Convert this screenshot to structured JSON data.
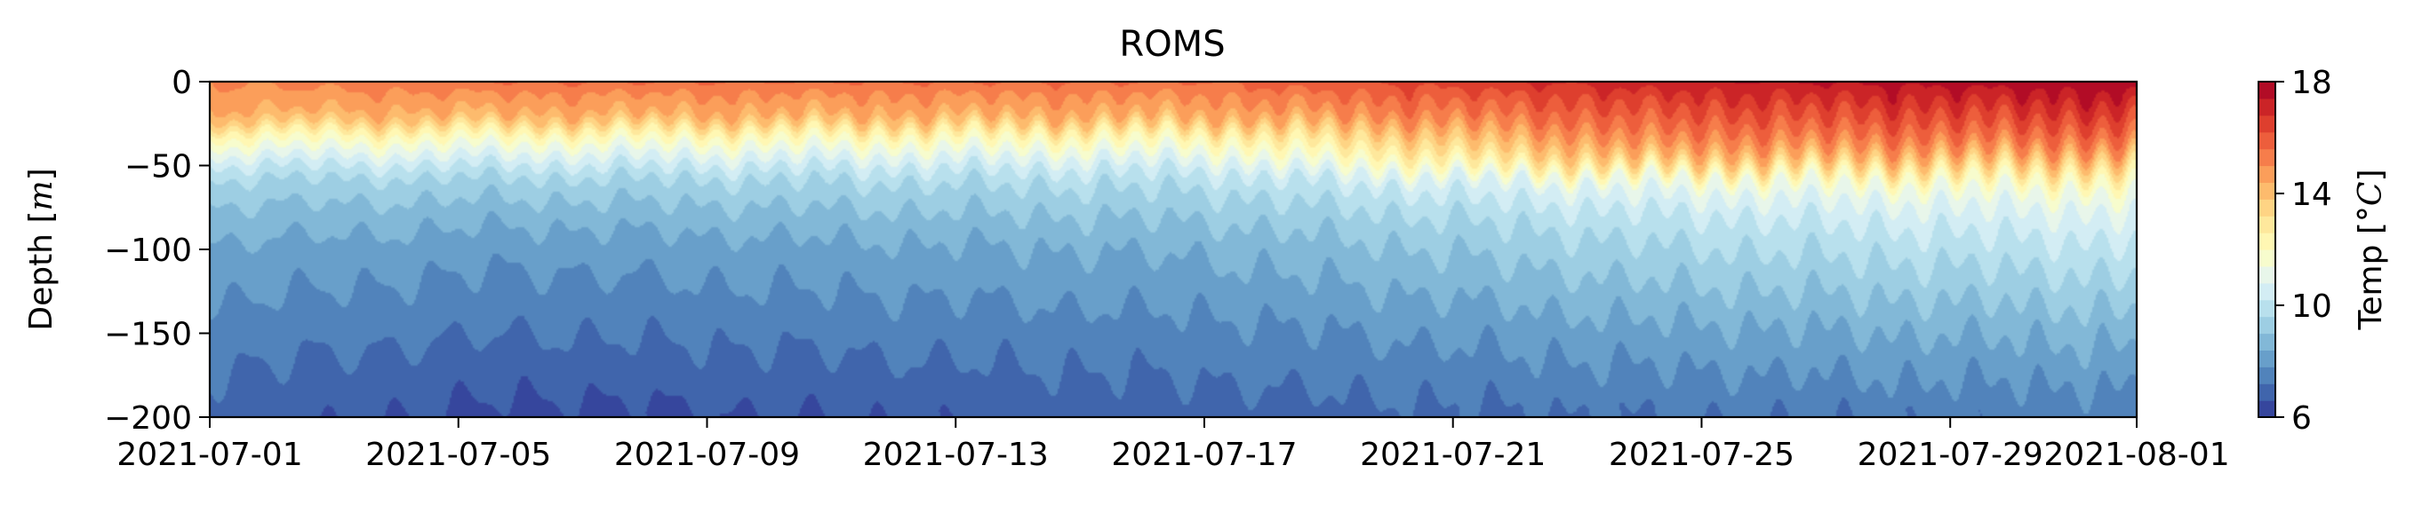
{
  "chart_data": {
    "type": "heatmap",
    "title": "ROMS",
    "ylabel": "Depth [$m$]",
    "ylabel_main": "Depth [",
    "ylabel_unit": "m",
    "ylabel_end": "]",
    "x_start": "2021-07-01",
    "x_end": "2021-08-01",
    "xticks": [
      "2021-07-01",
      "2021-07-05",
      "2021-07-09",
      "2021-07-13",
      "2021-07-17",
      "2021-07-21",
      "2021-07-25",
      "2021-07-29",
      "2021-08-01"
    ],
    "ylim": [
      -200,
      0
    ],
    "yticks": [
      0,
      -50,
      -100,
      -150,
      -200
    ],
    "ytick_labels": [
      "0",
      "−50",
      "−100",
      "−150",
      "−200"
    ],
    "colorbar": {
      "label": "Temp [$^\\circ C$]",
      "label_main": "Temp [",
      "label_unit": "°C",
      "label_end": "]",
      "range": [
        6,
        18
      ],
      "ticks": [
        "6",
        "10",
        "14",
        "18"
      ],
      "levels": 20
    },
    "temperature_profile": [
      {
        "date": "2021-07-01",
        "depths": [
          0,
          -10,
          -20,
          -25,
          -30,
          -38,
          -50,
          -60,
          -80,
          -100,
          -150,
          -200
        ],
        "temps": [
          15.0,
          14.7,
          14.2,
          13.5,
          12.5,
          11.5,
          10.2,
          9.5,
          8.8,
          8.3,
          7.5,
          6.9
        ]
      },
      {
        "date": "2021-07-06",
        "depths": [
          0,
          -10,
          -20,
          -25,
          -30,
          -38,
          -50,
          -60,
          -80,
          -100,
          -150,
          -200
        ],
        "temps": [
          15.6,
          14.8,
          14.3,
          13.5,
          12.5,
          11.4,
          10.2,
          9.4,
          8.6,
          8.0,
          7.2,
          6.4
        ]
      },
      {
        "date": "2021-07-17",
        "depths": [
          0,
          -10,
          -20,
          -25,
          -30,
          -38,
          -50,
          -60,
          -80,
          -100,
          -150,
          -200
        ],
        "temps": [
          15.6,
          14.9,
          14.4,
          13.7,
          12.7,
          11.7,
          10.5,
          9.8,
          9.1,
          8.5,
          7.6,
          6.9
        ]
      },
      {
        "date": "2021-07-24",
        "depths": [
          0,
          -10,
          -20,
          -30,
          -40,
          -48,
          -60,
          -80,
          -100,
          -150,
          -200
        ],
        "temps": [
          17.2,
          16.5,
          16.0,
          15.4,
          14.6,
          13.6,
          11.2,
          10.1,
          9.5,
          8.2,
          7.2
        ]
      },
      {
        "date": "2021-08-01",
        "depths": [
          0,
          -10,
          -20,
          -30,
          -40,
          -45,
          -55,
          -65,
          -80,
          -100,
          -150,
          -200
        ],
        "temps": [
          17.9,
          17.3,
          16.6,
          15.9,
          15.0,
          14.2,
          12.8,
          11.6,
          10.8,
          10.1,
          8.6,
          7.4
        ]
      }
    ],
    "colormap": [
      "#313695",
      "#4575b4",
      "#74add1",
      "#abd9e9",
      "#e0f3f8",
      "#ffffbf",
      "#fee090",
      "#fdae61",
      "#f46d43",
      "#d73027",
      "#a50026"
    ]
  }
}
